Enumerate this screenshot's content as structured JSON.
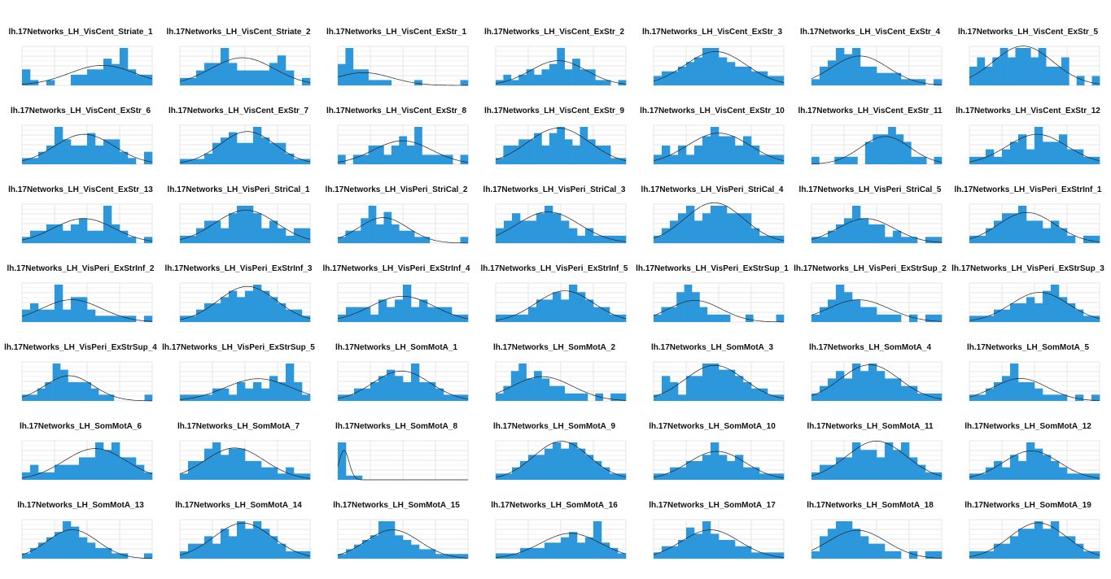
{
  "style": {
    "bar_color": "#2d97dc",
    "curve_color": "#222222",
    "grid_color": "#e6e6e6",
    "background": "#ffffff"
  },
  "chart_data": [
    {
      "type": "bar",
      "title": "lh.17Networks_LH_VisCent_Striate_1",
      "values": [
        3,
        1,
        0,
        1,
        0,
        0,
        2,
        2,
        3,
        3,
        5,
        4,
        7,
        3,
        2,
        2
      ]
    },
    {
      "type": "bar",
      "title": "lh.17Networks_LH_VisCent_Striate_2",
      "values": [
        1,
        1,
        2,
        3,
        3,
        5,
        3,
        2,
        2,
        2,
        2,
        3,
        4,
        2,
        0,
        1
      ]
    },
    {
      "type": "bar",
      "title": "lh.17Networks_LH_VisCent_ExStr_1",
      "values": [
        4,
        7,
        3,
        3,
        1,
        1,
        1,
        0,
        0,
        0,
        1,
        0,
        0,
        0,
        0,
        0,
        1
      ]
    },
    {
      "type": "bar",
      "title": "lh.17Networks_LH_VisCent_ExStr_2",
      "values": [
        1,
        2,
        1,
        2,
        3,
        2,
        3,
        4,
        7,
        3,
        5,
        3,
        3,
        1,
        1,
        0,
        1
      ]
    },
    {
      "type": "bar",
      "title": "lh.17Networks_LH_VisCent_ExStr_3",
      "values": [
        2,
        3,
        3,
        4,
        5,
        6,
        8,
        8,
        6,
        5,
        4,
        4,
        3,
        3,
        2,
        2
      ]
    },
    {
      "type": "bar",
      "title": "lh.17Networks_LH_VisCent_ExStr_4",
      "values": [
        1,
        3,
        4,
        6,
        5,
        6,
        3,
        3,
        2,
        2,
        2,
        1,
        1,
        1,
        0,
        1
      ]
    },
    {
      "type": "bar",
      "title": "lh.17Networks_LH_VisCent_ExStr_5",
      "values": [
        2,
        3,
        2,
        3,
        4,
        3,
        4,
        4,
        3,
        4,
        2,
        2,
        3,
        0,
        1,
        0,
        1
      ]
    },
    {
      "type": "bar",
      "title": "lh.17Networks_LH_VisCent_ExStr_6",
      "values": [
        1,
        1,
        2,
        3,
        6,
        4,
        3,
        3,
        5,
        3,
        4,
        4,
        2,
        1,
        0,
        2
      ]
    },
    {
      "type": "bar",
      "title": "lh.17Networks_LH_VisCent_ExStr_7",
      "values": [
        1,
        1,
        1,
        2,
        4,
        5,
        6,
        4,
        4,
        7,
        5,
        4,
        4,
        2,
        1,
        1
      ]
    },
    {
      "type": "bar",
      "title": "lh.17Networks_LH_VisCent_ExStr_8",
      "values": [
        1,
        0,
        1,
        1,
        2,
        2,
        1,
        2,
        3,
        2,
        4,
        1,
        1,
        1,
        1,
        0,
        1
      ]
    },
    {
      "type": "bar",
      "title": "lh.17Networks_LH_VisCent_ExStr_9",
      "values": [
        1,
        3,
        3,
        4,
        4,
        5,
        3,
        5,
        6,
        4,
        3,
        6,
        4,
        3,
        3,
        1,
        1
      ]
    },
    {
      "type": "bar",
      "title": "lh.17Networks_LH_VisCent_ExStr_10",
      "values": [
        1,
        2,
        1,
        2,
        1,
        2,
        3,
        4,
        3,
        3,
        2,
        3,
        2,
        1,
        1,
        1
      ]
    },
    {
      "type": "bar",
      "title": "lh.17Networks_LH_VisCent_ExStr_11",
      "values": [
        1,
        0,
        0,
        1,
        1,
        1,
        0,
        3,
        4,
        4,
        5,
        4,
        3,
        1,
        1,
        0,
        1
      ]
    },
    {
      "type": "bar",
      "title": "lh.17Networks_LH_VisCent_ExStr_12",
      "values": [
        1,
        1,
        2,
        1,
        2,
        3,
        4,
        2,
        5,
        3,
        3,
        4,
        2,
        2,
        1,
        1
      ]
    },
    {
      "type": "bar",
      "title": "lh.17Networks_LH_VisCent_ExStr_13",
      "values": [
        1,
        2,
        2,
        3,
        3,
        2,
        3,
        4,
        2,
        2,
        6,
        3,
        2,
        1,
        0,
        1
      ]
    },
    {
      "type": "bar",
      "title": "lh.17Networks_LH_VisPeri_StriCal_1",
      "values": [
        1,
        1,
        2,
        3,
        3,
        2,
        4,
        5,
        5,
        4,
        2,
        3,
        2,
        1,
        2,
        2
      ]
    },
    {
      "type": "bar",
      "title": "lh.17Networks_LH_VisPeri_StriCal_2",
      "values": [
        1,
        2,
        2,
        4,
        6,
        3,
        5,
        3,
        2,
        2,
        1,
        1,
        0,
        0,
        0,
        0,
        1
      ]
    },
    {
      "type": "bar",
      "title": "lh.17Networks_LH_VisPeri_StriCal_3",
      "values": [
        2,
        3,
        4,
        3,
        3,
        4,
        5,
        4,
        3,
        2,
        1,
        2,
        1,
        1,
        1,
        1
      ]
    },
    {
      "type": "bar",
      "title": "lh.17Networks_LH_VisPeri_StriCal_4",
      "values": [
        1,
        2,
        3,
        4,
        5,
        3,
        4,
        5,
        5,
        4,
        4,
        4,
        2,
        1,
        1,
        1
      ]
    },
    {
      "type": "bar",
      "title": "lh.17Networks_LH_VisPeri_StriCal_5",
      "values": [
        1,
        1,
        2,
        3,
        4,
        6,
        4,
        3,
        3,
        1,
        2,
        1,
        1,
        0,
        1,
        1
      ]
    },
    {
      "type": "bar",
      "title": "lh.17Networks_LH_VisPeri_ExStrInf_1",
      "values": [
        1,
        1,
        2,
        3,
        4,
        4,
        5,
        3,
        3,
        2,
        3,
        2,
        1,
        0,
        1,
        1
      ]
    },
    {
      "type": "bar",
      "title": "lh.17Networks_LH_VisPeri_ExStrInf_2",
      "values": [
        2,
        3,
        2,
        2,
        6,
        2,
        4,
        4,
        2,
        1,
        1,
        1,
        1,
        1,
        0,
        1
      ]
    },
    {
      "type": "bar",
      "title": "lh.17Networks_LH_VisPeri_ExStrInf_3",
      "values": [
        1,
        1,
        2,
        3,
        3,
        4,
        5,
        4,
        5,
        6,
        5,
        4,
        3,
        2,
        2,
        1
      ]
    },
    {
      "type": "bar",
      "title": "lh.17Networks_LH_VisPeri_ExStrInf_4",
      "values": [
        1,
        2,
        2,
        2,
        1,
        3,
        2,
        3,
        5,
        2,
        3,
        2,
        2,
        2,
        1,
        1
      ]
    },
    {
      "type": "bar",
      "title": "lh.17Networks_LH_VisPeri_ExStrInf_5",
      "values": [
        1,
        1,
        1,
        1,
        2,
        3,
        3,
        4,
        3,
        5,
        4,
        3,
        2,
        2,
        1,
        1
      ]
    },
    {
      "type": "bar",
      "title": "lh.17Networks_LH_VisPeri_ExStrSup_1",
      "values": [
        1,
        2,
        2,
        4,
        5,
        4,
        2,
        1,
        1,
        1,
        0,
        0,
        1,
        0,
        0,
        0,
        1
      ]
    },
    {
      "type": "bar",
      "title": "lh.17Networks_LH_VisPeri_ExStrSup_2",
      "values": [
        1,
        2,
        3,
        5,
        4,
        3,
        2,
        2,
        1,
        1,
        1,
        0,
        1,
        0,
        1,
        1
      ]
    },
    {
      "type": "bar",
      "title": "lh.17Networks_LH_VisPeri_ExStrSup_3",
      "values": [
        1,
        1,
        1,
        2,
        2,
        3,
        3,
        4,
        3,
        5,
        6,
        4,
        3,
        2,
        1,
        1
      ]
    },
    {
      "type": "bar",
      "title": "lh.17Networks_LH_VisPeri_ExStrSup_4",
      "values": [
        1,
        1,
        2,
        3,
        6,
        5,
        3,
        3,
        3,
        2,
        1,
        1,
        0,
        0,
        0,
        0,
        1
      ]
    },
    {
      "type": "bar",
      "title": "lh.17Networks_LH_VisPeri_ExStrSup_5",
      "values": [
        1,
        1,
        1,
        1,
        2,
        2,
        1,
        3,
        2,
        3,
        2,
        4,
        3,
        6,
        3,
        1
      ]
    },
    {
      "type": "bar",
      "title": "lh.17Networks_LH_SomMotA_1",
      "values": [
        1,
        1,
        2,
        2,
        3,
        4,
        5,
        4,
        3,
        6,
        3,
        3,
        2,
        1,
        1,
        1
      ]
    },
    {
      "type": "bar",
      "title": "lh.17Networks_LH_SomMotA_2",
      "values": [
        1,
        2,
        4,
        5,
        3,
        4,
        3,
        2,
        2,
        1,
        1,
        1,
        0,
        1,
        0,
        1,
        1
      ]
    },
    {
      "type": "bar",
      "title": "lh.17Networks_LH_SomMotA_3",
      "values": [
        1,
        4,
        3,
        1,
        4,
        4,
        6,
        6,
        5,
        5,
        4,
        3,
        2,
        2,
        1,
        1
      ]
    },
    {
      "type": "bar",
      "title": "lh.17Networks_LH_SomMotA_4",
      "values": [
        1,
        2,
        3,
        4,
        3,
        5,
        4,
        5,
        4,
        3,
        3,
        2,
        2,
        1,
        1,
        1
      ]
    },
    {
      "type": "bar",
      "title": "lh.17Networks_LH_SomMotA_5",
      "values": [
        1,
        1,
        2,
        3,
        4,
        6,
        3,
        3,
        2,
        1,
        1,
        1,
        0,
        1,
        0,
        1
      ]
    },
    {
      "type": "bar",
      "title": "lh.17Networks_LH_SomMotA_6",
      "values": [
        1,
        2,
        1,
        1,
        2,
        2,
        2,
        3,
        3,
        5,
        4,
        5,
        3,
        3,
        2,
        1
      ]
    },
    {
      "type": "bar",
      "title": "lh.17Networks_LH_SomMotA_7",
      "values": [
        1,
        3,
        3,
        5,
        6,
        4,
        5,
        5,
        3,
        3,
        2,
        2,
        1,
        2,
        1,
        1
      ]
    },
    {
      "type": "bar",
      "title": "lh.17Networks_LH_SomMotA_8",
      "values": [
        9,
        1,
        1,
        0,
        0,
        0,
        0,
        0,
        0,
        0,
        0,
        0,
        0,
        0,
        0,
        0
      ]
    },
    {
      "type": "bar",
      "title": "lh.17Networks_LH_SomMotA_9",
      "values": [
        1,
        1,
        2,
        3,
        4,
        4,
        5,
        6,
        5,
        6,
        5,
        4,
        3,
        2,
        1,
        1
      ]
    },
    {
      "type": "bar",
      "title": "lh.17Networks_LH_SomMotA_10",
      "values": [
        1,
        1,
        2,
        2,
        3,
        3,
        4,
        6,
        4,
        3,
        4,
        2,
        2,
        1,
        1,
        1
      ]
    },
    {
      "type": "bar",
      "title": "lh.17Networks_LH_SomMotA_11",
      "values": [
        1,
        2,
        2,
        3,
        3,
        5,
        4,
        4,
        3,
        5,
        4,
        5,
        3,
        2,
        1,
        1
      ]
    },
    {
      "type": "bar",
      "title": "lh.17Networks_LH_SomMotA_12",
      "values": [
        1,
        1,
        2,
        3,
        2,
        4,
        3,
        6,
        5,
        4,
        3,
        2,
        1,
        1,
        1,
        1
      ]
    },
    {
      "type": "bar",
      "title": "lh.17Networks_LH_SomMotA_13",
      "values": [
        1,
        2,
        3,
        4,
        5,
        7,
        6,
        4,
        3,
        2,
        2,
        1,
        1,
        0,
        0,
        1
      ]
    },
    {
      "type": "bar",
      "title": "lh.17Networks_LH_SomMotA_14",
      "values": [
        1,
        2,
        2,
        3,
        2,
        4,
        3,
        5,
        4,
        5,
        4,
        3,
        2,
        1,
        1,
        1
      ]
    },
    {
      "type": "bar",
      "title": "lh.17Networks_LH_SomMotA_15",
      "values": [
        1,
        2,
        3,
        4,
        5,
        8,
        8,
        5,
        4,
        3,
        2,
        2,
        1,
        1,
        1,
        1
      ]
    },
    {
      "type": "bar",
      "title": "lh.17Networks_LH_SomMotA_16",
      "values": [
        1,
        1,
        1,
        2,
        2,
        2,
        3,
        3,
        4,
        5,
        3,
        4,
        7,
        3,
        2,
        1
      ]
    },
    {
      "type": "bar",
      "title": "lh.17Networks_LH_SomMotA_17",
      "values": [
        1,
        2,
        2,
        3,
        5,
        4,
        6,
        4,
        3,
        3,
        2,
        2,
        1,
        1,
        1,
        1
      ]
    },
    {
      "type": "bar",
      "title": "lh.17Networks_LH_SomMotA_18",
      "values": [
        1,
        3,
        4,
        5,
        5,
        4,
        3,
        2,
        2,
        1,
        1,
        0,
        1,
        0,
        1,
        1
      ]
    },
    {
      "type": "bar",
      "title": "lh.17Networks_LH_SomMotA_19",
      "values": [
        1,
        1,
        1,
        2,
        2,
        3,
        4,
        4,
        5,
        4,
        5,
        3,
        3,
        2,
        1,
        1
      ]
    }
  ]
}
